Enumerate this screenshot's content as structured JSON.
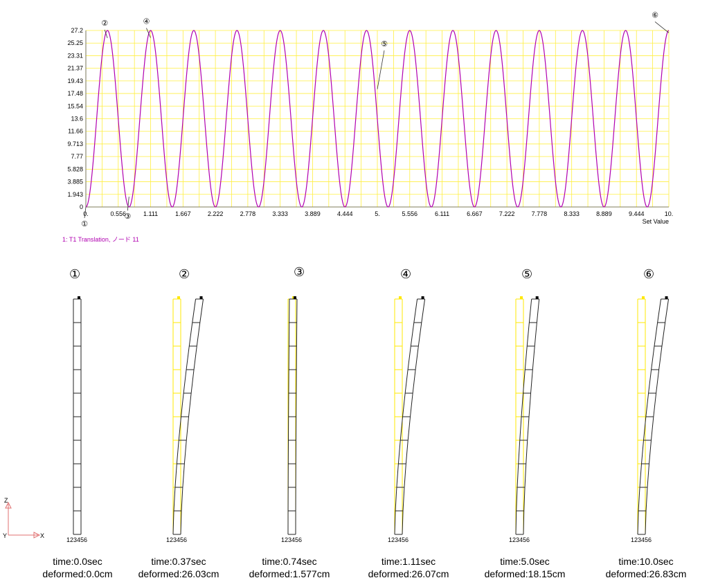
{
  "chart_data": {
    "type": "line",
    "x_ticks": [
      "0.",
      "0.556",
      "1.111",
      "1.667",
      "2.222",
      "2.778",
      "3.333",
      "3.889",
      "4.444",
      "5.",
      "5.556",
      "6.111",
      "6.667",
      "7.222",
      "7.778",
      "8.333",
      "8.889",
      "9.444",
      "10."
    ],
    "y_ticks": [
      "0",
      "1.943",
      "3.885",
      "5.828",
      "7.77",
      "9.713",
      "11.66",
      "13.6",
      "15.54",
      "17.48",
      "19.43",
      "21.37",
      "23.31",
      "25.25",
      "27.2"
    ],
    "xlim": [
      0,
      10
    ],
    "ylim": [
      0,
      27.2
    ],
    "xlabel": "Set Value",
    "grid": true,
    "series": [
      {
        "name": "1: T1 Translation, ノード 11",
        "color": "#b000b0",
        "model": "y = A*(1 - cos(2*pi*x/T))",
        "amplitude": 13.6,
        "period": 0.7407
      }
    ],
    "markers": [
      {
        "label": "①",
        "x": 0.0,
        "y": 0.0
      },
      {
        "label": "②",
        "x": 0.37,
        "y": 26.03
      },
      {
        "label": "③",
        "x": 0.74,
        "y": 1.577
      },
      {
        "label": "④",
        "x": 1.11,
        "y": 26.07
      },
      {
        "label": "⑤",
        "x": 5.0,
        "y": 18.15
      },
      {
        "label": "⑥",
        "x": 10.0,
        "y": 26.83
      }
    ]
  },
  "panels": [
    {
      "num": "①",
      "time": "time:0.0sec",
      "deformed": "deformed:0.0cm",
      "node_label": "123456",
      "tilt": 0.0,
      "ghost": false
    },
    {
      "num": "②",
      "time": "time:0.37sec",
      "deformed": "deformed:26.03cm",
      "node_label": "123456",
      "tilt": 26.03,
      "ghost": true
    },
    {
      "num": "③",
      "time": "time:0.74sec",
      "deformed": "deformed:1.577cm",
      "node_label": "123456",
      "tilt": 1.577,
      "ghost": true
    },
    {
      "num": "④",
      "time": "time:1.11sec",
      "deformed": "deformed:26.07cm",
      "node_label": "123456",
      "tilt": 26.07,
      "ghost": true
    },
    {
      "num": "⑤",
      "time": "time:5.0sec",
      "deformed": "deformed:18.15cm",
      "node_label": "123456",
      "tilt": 18.15,
      "ghost": true
    },
    {
      "num": "⑥",
      "time": "time:10.0sec",
      "deformed": "deformed:26.83cm",
      "node_label": "123456",
      "tilt": 26.83,
      "ghost": true
    }
  ],
  "axes_triad": {
    "z": "Z",
    "y": "Y",
    "x": "X"
  }
}
